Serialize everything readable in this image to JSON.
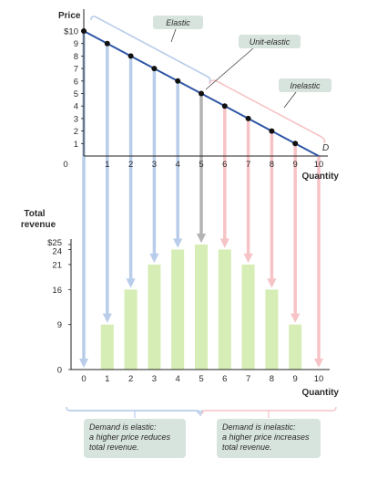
{
  "chart_data": [
    {
      "type": "line",
      "ylabel": "Price",
      "xlabel": "Quantity",
      "x": [
        0,
        1,
        2,
        3,
        4,
        5,
        6,
        7,
        8,
        9,
        10
      ],
      "y": [
        10,
        9,
        8,
        7,
        6,
        5,
        4,
        3,
        2,
        1,
        0
      ],
      "xlim": [
        0,
        10
      ],
      "ylim": [
        0,
        10
      ],
      "x_ticks": [
        "0",
        "1",
        "2",
        "3",
        "4",
        "5",
        "6",
        "7",
        "8",
        "9",
        "10"
      ],
      "y_ticks": [
        "$10",
        "9",
        "8",
        "7",
        "6",
        "5",
        "4",
        "3",
        "2",
        "1"
      ],
      "curve_label": "D",
      "region_labels": {
        "elastic": "Elastic",
        "unit": "Unit-elastic",
        "inelastic": "Inelastic"
      },
      "colors": {
        "line": "#2f56a6",
        "elastic": "#b9cdea",
        "unit": "#b3b3b3",
        "inelastic": "#f6c3c6",
        "label_box": "#d7e3dd"
      }
    },
    {
      "type": "bar",
      "ylabel": "Total revenue",
      "xlabel": "Quantity",
      "categories": [
        "0",
        "1",
        "2",
        "3",
        "4",
        "5",
        "6",
        "7",
        "8",
        "9",
        "10"
      ],
      "values": [
        0,
        9,
        16,
        21,
        24,
        25,
        24,
        21,
        16,
        9,
        0
      ],
      "y_ticks": [
        "$25",
        "24",
        "21",
        "16",
        "9",
        "0"
      ],
      "y_tick_values": [
        25,
        24,
        21,
        16,
        9,
        0
      ],
      "ylim": [
        0,
        25
      ],
      "colors": {
        "bar": "#d6edb5"
      }
    }
  ],
  "notes": {
    "elastic": [
      "Demand is elastic:",
      "a higher price reduces",
      "total revenue."
    ],
    "inelastic": [
      "Demand is inelastic:",
      "a higher price increases",
      "total revenue."
    ]
  }
}
